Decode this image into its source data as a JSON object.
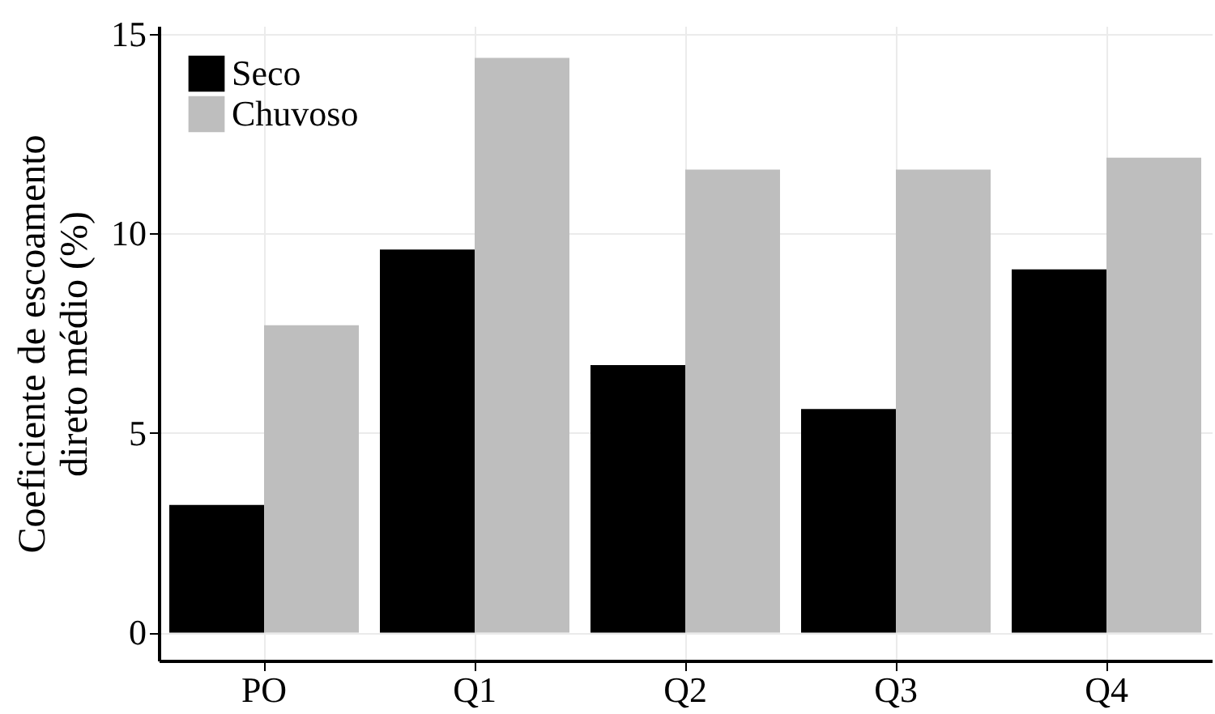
{
  "chart_data": {
    "type": "bar",
    "ylabel": "Coeficiente de escoamento\ndireto médio (%)",
    "categories": [
      "PO",
      "Q1",
      "Q2",
      "Q3",
      "Q4"
    ],
    "series": [
      {
        "name": "Seco",
        "color": "#000000",
        "values": [
          3.2,
          9.6,
          6.7,
          5.6,
          9.1
        ]
      },
      {
        "name": "Chuvoso",
        "color": "#bebebe",
        "values": [
          7.7,
          14.4,
          11.6,
          11.6,
          11.9
        ]
      }
    ],
    "ylim": [
      -0.7,
      15.2
    ],
    "yticks": [
      0,
      5,
      10,
      15
    ],
    "grid": true,
    "legend": "top left"
  }
}
